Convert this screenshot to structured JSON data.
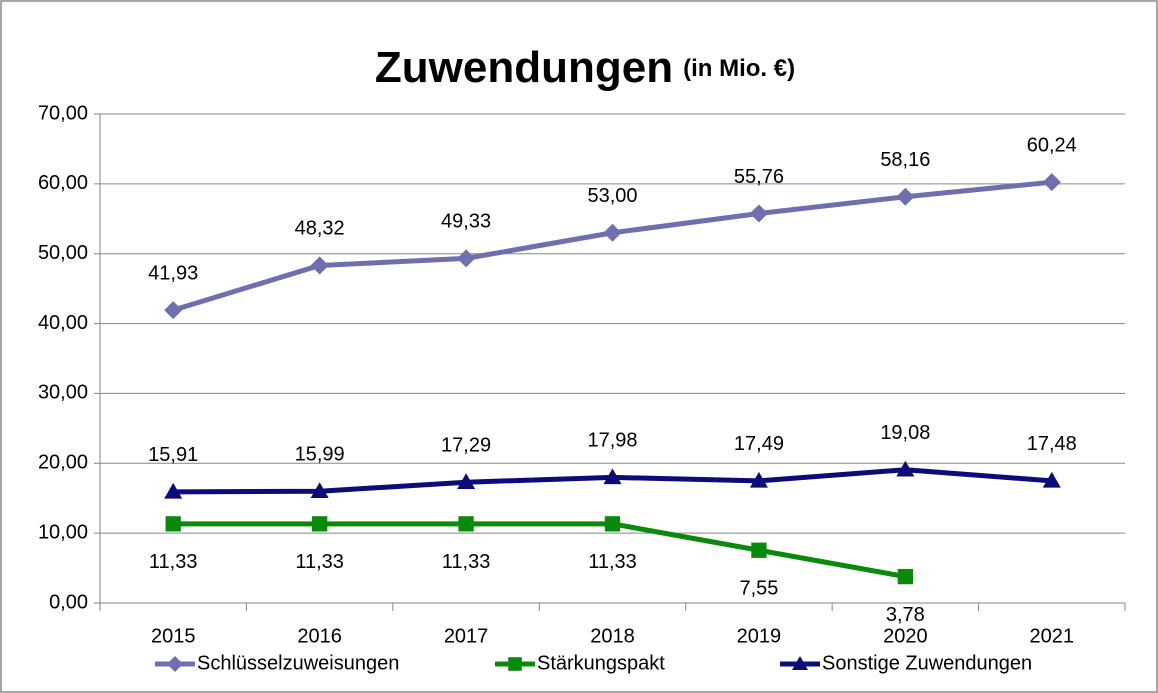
{
  "chart_data": {
    "type": "line",
    "title": "Zuwendungen",
    "title_note": "(in Mio. €)",
    "categories": [
      "2015",
      "2016",
      "2017",
      "2018",
      "2019",
      "2020",
      "2021"
    ],
    "series": [
      {
        "name": "Schlüsselzuweisungen",
        "color": "#6f6fb0",
        "marker": "diamond",
        "label_position": "above",
        "values": [
          41.93,
          48.32,
          49.33,
          53.0,
          55.76,
          58.16,
          60.24
        ],
        "value_labels": [
          "41,93",
          "48,32",
          "49,33",
          "53,00",
          "55,76",
          "58,16",
          "60,24"
        ]
      },
      {
        "name": "Stärkungspakt",
        "color": "#0a8a0a",
        "marker": "square",
        "label_position": "below",
        "values": [
          11.33,
          11.33,
          11.33,
          11.33,
          7.55,
          3.78,
          null
        ],
        "value_labels": [
          "11,33",
          "11,33",
          "11,33",
          "11,33",
          "7,55",
          "3,78",
          null
        ]
      },
      {
        "name": "Sonstige Zuwendungen",
        "color": "#0c0c78",
        "marker": "triangle",
        "label_position": "above",
        "values": [
          15.91,
          15.99,
          17.29,
          17.98,
          17.49,
          19.08,
          17.48
        ],
        "value_labels": [
          "15,91",
          "15,99",
          "17,29",
          "17,98",
          "17,49",
          "19,08",
          "17,48"
        ]
      }
    ],
    "ylim": [
      0,
      70
    ],
    "yticks": [
      {
        "value": 0,
        "label": "0,00"
      },
      {
        "value": 10,
        "label": "10,00"
      },
      {
        "value": 20,
        "label": "20,00"
      },
      {
        "value": 30,
        "label": "30,00"
      },
      {
        "value": 40,
        "label": "40,00"
      },
      {
        "value": 50,
        "label": "50,00"
      },
      {
        "value": 60,
        "label": "60,00"
      },
      {
        "value": 70,
        "label": "70,00"
      }
    ],
    "grid": true,
    "legend": "bottom"
  }
}
